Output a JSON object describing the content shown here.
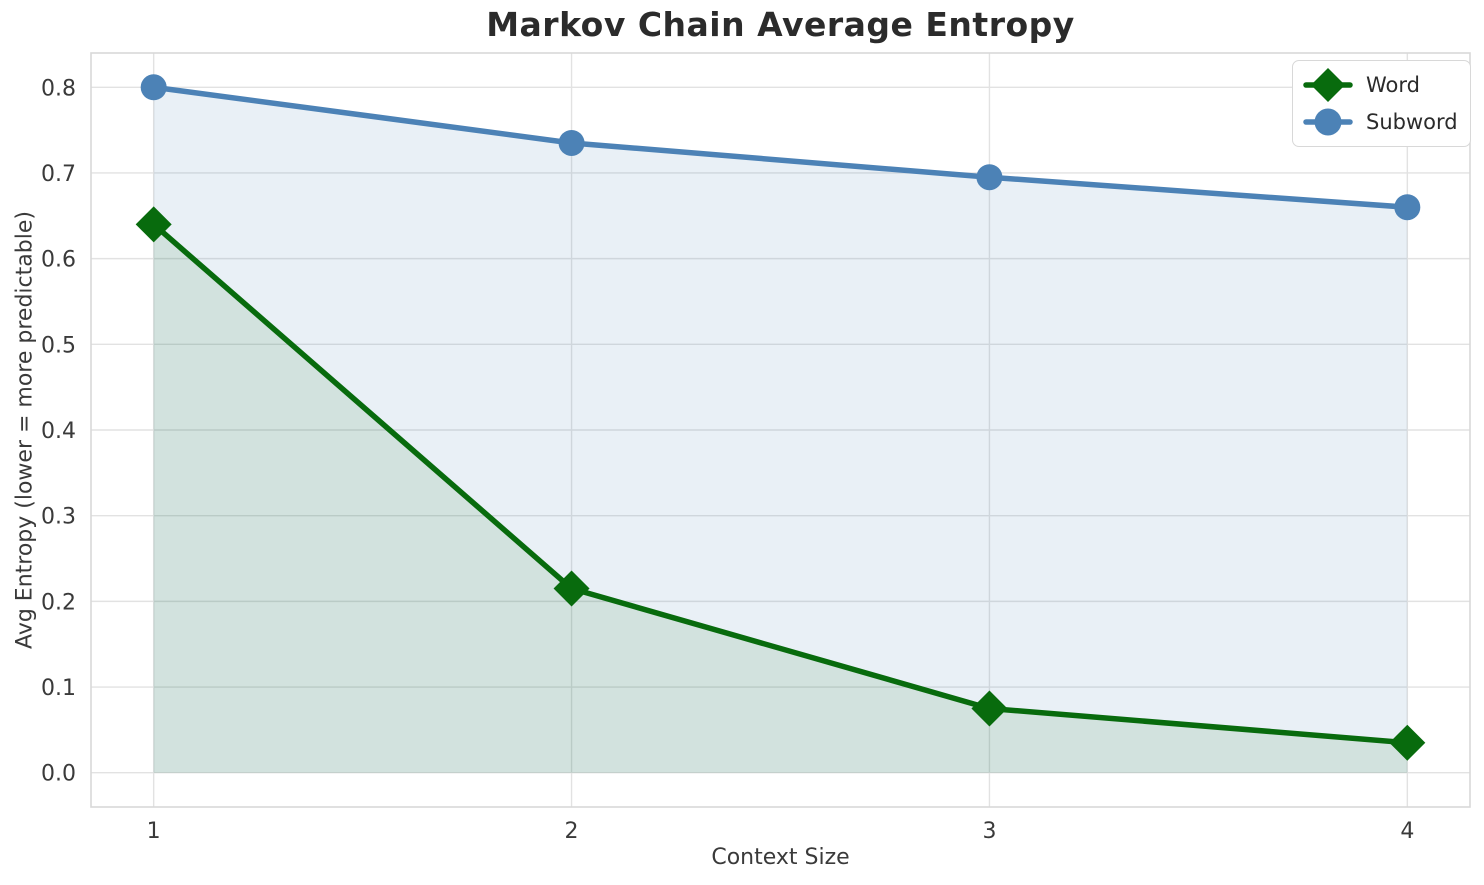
{
  "figure": {
    "background": "#ffffff",
    "grid_color": "#e2e2e2",
    "spine_color": "#d9d9d9",
    "tick_text_color": "#3a3a3a",
    "title_color": "#2b2b2b"
  },
  "chart_data": {
    "type": "line",
    "title": "Markov Chain Average Entropy",
    "xlabel": "Context Size",
    "ylabel": "Avg Entropy (lower = more predictable)",
    "x": [
      1,
      2,
      3,
      4
    ],
    "series": [
      {
        "name": "Word",
        "values": [
          0.64,
          0.215,
          0.075,
          0.035
        ],
        "color": "#086b0d",
        "marker": "diamond",
        "fill_alpha": 0.1
      },
      {
        "name": "Subword",
        "values": [
          0.8,
          0.735,
          0.695,
          0.66
        ],
        "color": "#4c82b6",
        "marker": "circle",
        "fill_alpha": 0.12
      }
    ],
    "xlim": [
      0.85,
      4.15
    ],
    "ylim": [
      -0.04,
      0.84
    ],
    "xticks": [
      {
        "v": 1,
        "label": "1"
      },
      {
        "v": 2,
        "label": "2"
      },
      {
        "v": 3,
        "label": "3"
      },
      {
        "v": 4,
        "label": "4"
      }
    ],
    "yticks": [
      {
        "v": 0.0,
        "label": "0.0"
      },
      {
        "v": 0.1,
        "label": "0.1"
      },
      {
        "v": 0.2,
        "label": "0.2"
      },
      {
        "v": 0.3,
        "label": "0.3"
      },
      {
        "v": 0.4,
        "label": "0.4"
      },
      {
        "v": 0.5,
        "label": "0.5"
      },
      {
        "v": 0.6,
        "label": "0.6"
      },
      {
        "v": 0.7,
        "label": "0.7"
      },
      {
        "v": 0.8,
        "label": "0.8"
      }
    ],
    "grid": true,
    "legend_position": "upper right",
    "fill_to_zero": true
  }
}
